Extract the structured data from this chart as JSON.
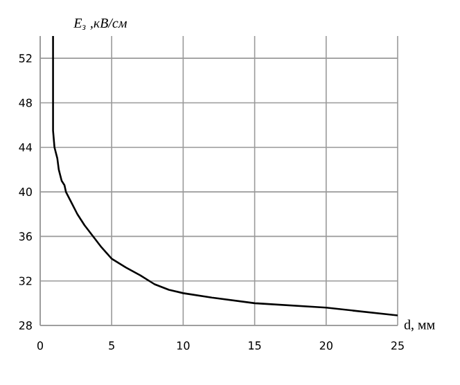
{
  "chart_data": {
    "type": "line",
    "xlabel": "d, мм",
    "ylabel": "E$_{з}$ ,кВ/см",
    "xlim": [
      0,
      25
    ],
    "ylim": [
      28,
      54
    ],
    "xticks": [
      0,
      5,
      10,
      15,
      20,
      25
    ],
    "yticks": [
      28,
      32,
      36,
      40,
      44,
      48,
      52
    ],
    "grid": true,
    "marker": "none",
    "line_style": "solid",
    "series": [
      {
        "color": "#000000",
        "x": [
          0.9,
          0.9,
          1.0,
          1.2,
          1.3,
          1.5,
          1.7,
          1.8,
          2.2,
          2.6,
          3.1,
          3.7,
          4.3,
          5.0,
          6.0,
          7.0,
          8.0,
          9.0,
          10.0,
          12.0,
          15.0,
          20.0,
          25.0
        ],
        "values": [
          54,
          45.5,
          44,
          43,
          42,
          41,
          40.6,
          40,
          39,
          38,
          37,
          36,
          35,
          34,
          33.2,
          32.5,
          31.7,
          31.2,
          30.9,
          30.5,
          30,
          29.6,
          28.9
        ]
      }
    ]
  }
}
